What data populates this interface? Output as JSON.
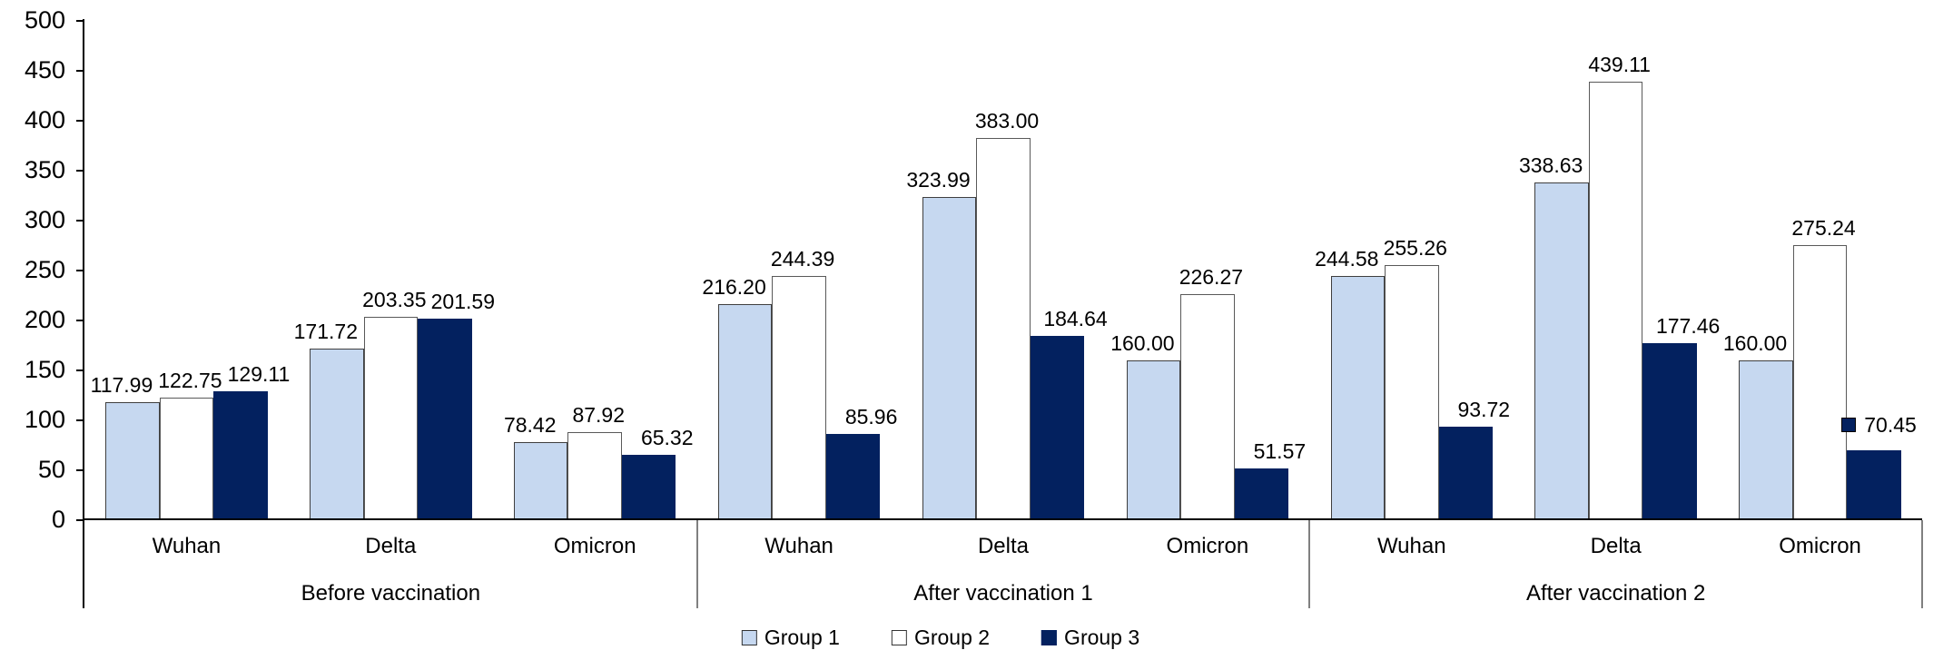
{
  "chart_data": {
    "type": "bar",
    "title": "",
    "groups": [
      "Before vaccination",
      "After vaccination 1",
      "After vaccination 2"
    ],
    "categories": [
      "Wuhan",
      "Delta",
      "Omicron"
    ],
    "series": [
      {
        "name": "Group 1",
        "color": "#C6D8F0",
        "border_color": "#3F3F3F",
        "values": [
          117.99,
          171.72,
          78.42,
          216.2,
          323.99,
          160.0,
          244.58,
          338.63,
          160.0
        ]
      },
      {
        "name": "Group 2",
        "color": "#FFFFFF",
        "border_color": "#595959",
        "values": [
          122.75,
          203.35,
          87.92,
          244.39,
          383.0,
          226.27,
          255.26,
          439.11,
          275.24
        ]
      },
      {
        "name": "Group 3",
        "color": "#03215F",
        "border_color": "#03215F",
        "values": [
          129.11,
          201.59,
          65.32,
          85.96,
          184.64,
          51.57,
          93.72,
          177.46,
          70.45
        ]
      }
    ],
    "value_label_decimals": 2,
    "ylim": [
      0,
      500
    ],
    "yticks": [
      0,
      50,
      100,
      150,
      200,
      250,
      300,
      350,
      400,
      450,
      500
    ],
    "grid": false,
    "legend_position": "bottom",
    "legend_items": [
      "Group 1",
      "Group 2",
      "Group 3"
    ],
    "special_labels": [
      {
        "series_index": 2,
        "value_index": 8,
        "label": "70.45",
        "shows_legend_key": true,
        "placement": "right-of-bar"
      }
    ],
    "axis_color": "#000000",
    "separator_color": "#808080"
  }
}
